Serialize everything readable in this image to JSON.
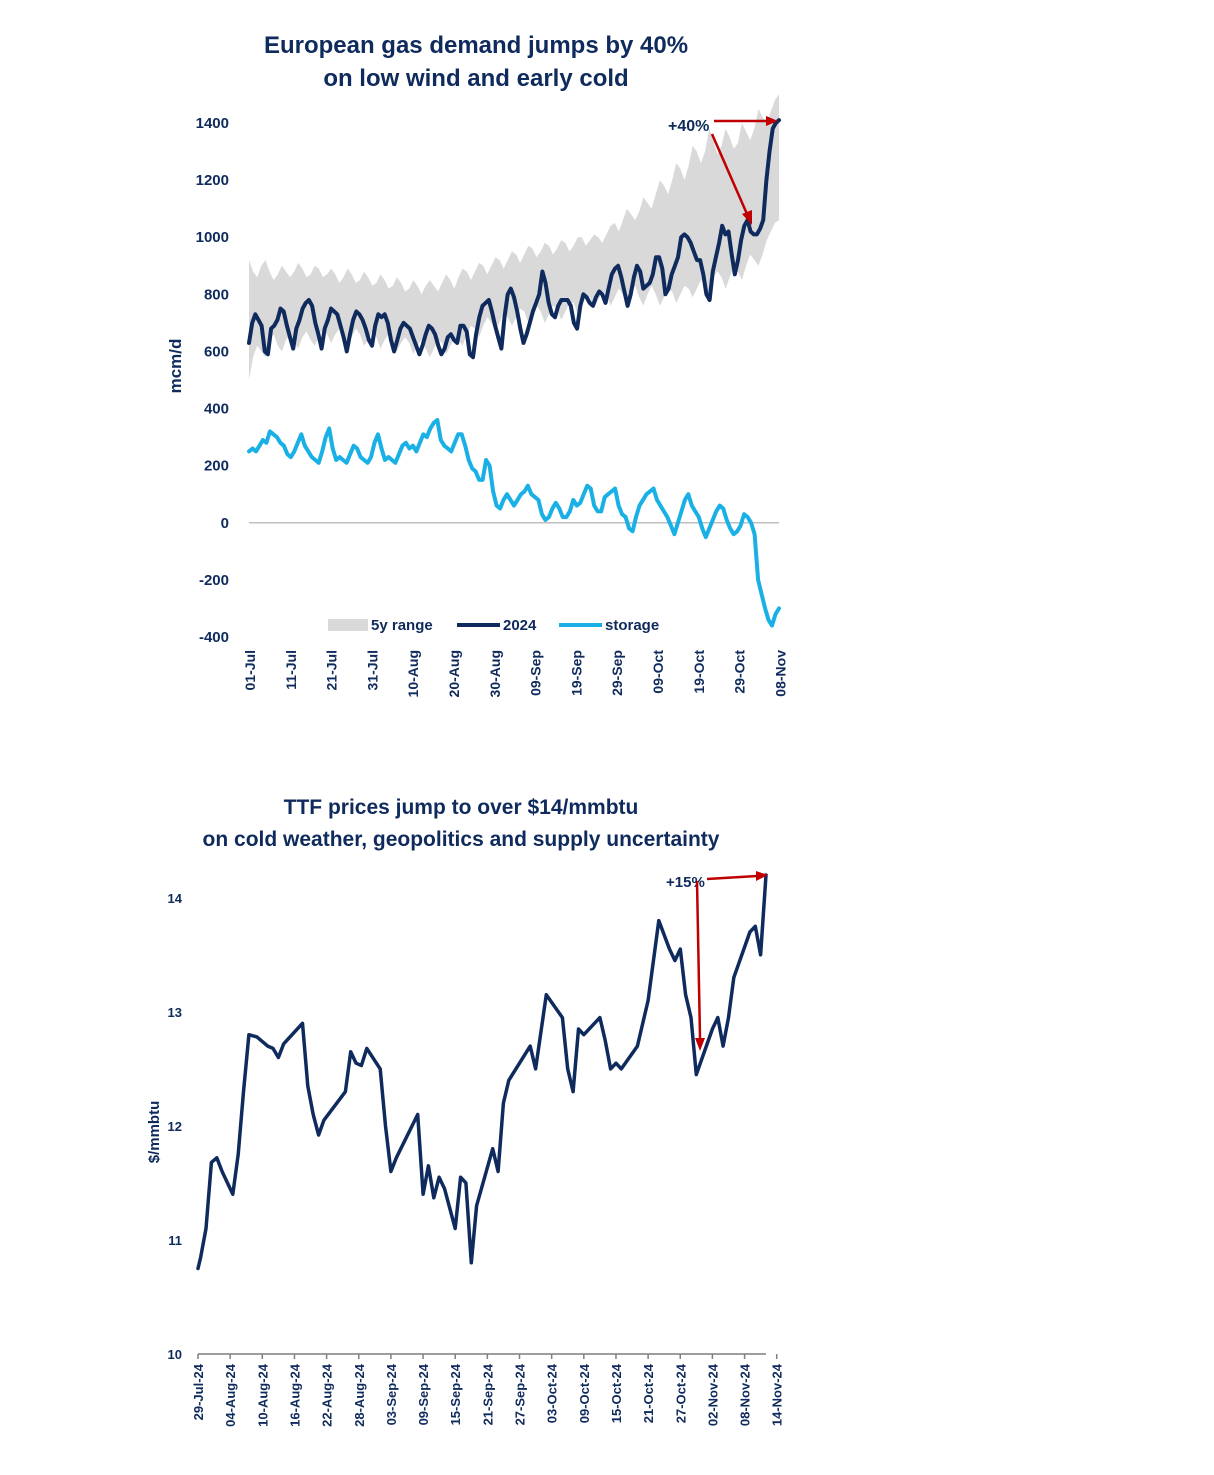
{
  "chart_data": [
    {
      "type": "line",
      "title": "European gas demand jumps by 40%",
      "subtitle": "on low wind and early cold",
      "ylabel": "mcm/d",
      "ylim": [
        -400,
        1400
      ],
      "yticks": [
        1400,
        1200,
        1000,
        800,
        600,
        400,
        200,
        0,
        -200,
        -400
      ],
      "x_start": "01-Jul",
      "x_end": "11-Nov",
      "x_tick_labels": [
        "01-Jul",
        "11-Jul",
        "21-Jul",
        "31-Jul",
        "10-Aug",
        "20-Aug",
        "30-Aug",
        "09-Sep",
        "19-Sep",
        "29-Sep",
        "09-Oct",
        "19-Oct",
        "29-Oct",
        "08-Nov"
      ],
      "legend": [
        "5y range",
        "2024",
        "storage"
      ],
      "legend_placement": "bottom",
      "colors": {
        "range": "#d9d9d9",
        "demand": "#0f2a5c",
        "storage": "#19b0e6",
        "arrow": "#c00000",
        "zero_line": "#bfbfbf"
      },
      "annotation": "+40%",
      "series": [
        {
          "name": "5y range",
          "lower": [
            500,
            580,
            620,
            600,
            580,
            640,
            660,
            620,
            600,
            640,
            660,
            630,
            610,
            650,
            670,
            640,
            620,
            650,
            680,
            660,
            630,
            660,
            680,
            660,
            630,
            650,
            680,
            660,
            620,
            640,
            670,
            650,
            610,
            640,
            660,
            640,
            600,
            630,
            650,
            630,
            590,
            620,
            640,
            610,
            580,
            610,
            640,
            630,
            590,
            620,
            650,
            640,
            620,
            660,
            690,
            680,
            650,
            690,
            720,
            700,
            670,
            700,
            740,
            720,
            690,
            720,
            750,
            740,
            700,
            730,
            760,
            740,
            700,
            730,
            760,
            750,
            710,
            740,
            770,
            770,
            730,
            760,
            790,
            790,
            750,
            780,
            810,
            800,
            760,
            790,
            820,
            800,
            770,
            800,
            830,
            790,
            760,
            800,
            830,
            800,
            760,
            790,
            820,
            810,
            770,
            800,
            830,
            820,
            790,
            820,
            850,
            840,
            800,
            860,
            880,
            860,
            820,
            860,
            900,
            880,
            850,
            900,
            940,
            920,
            900,
            940,
            990,
            1020,
            1050,
            1060
          ],
          "upper": [
            920,
            880,
            860,
            900,
            920,
            880,
            850,
            870,
            900,
            880,
            860,
            880,
            910,
            890,
            860,
            870,
            900,
            890,
            860,
            870,
            890,
            870,
            840,
            860,
            890,
            870,
            840,
            850,
            880,
            860,
            830,
            840,
            870,
            850,
            820,
            830,
            860,
            840,
            810,
            820,
            850,
            830,
            800,
            830,
            850,
            830,
            810,
            840,
            870,
            850,
            820,
            860,
            890,
            880,
            850,
            880,
            910,
            900,
            870,
            900,
            930,
            920,
            890,
            920,
            950,
            940,
            910,
            940,
            970,
            960,
            930,
            950,
            980,
            970,
            940,
            960,
            990,
            980,
            950,
            970,
            1000,
            1000,
            970,
            990,
            1010,
            1000,
            980,
            1010,
            1040,
            1050,
            1020,
            1060,
            1100,
            1080,
            1060,
            1090,
            1140,
            1120,
            1100,
            1150,
            1200,
            1180,
            1150,
            1200,
            1260,
            1240,
            1200,
            1250,
            1320,
            1300,
            1260,
            1300,
            1380,
            1340,
            1290,
            1320,
            1380,
            1350,
            1310,
            1330,
            1400,
            1370,
            1340,
            1380,
            1450,
            1420,
            1400,
            1440,
            1480,
            1500
          ]
        },
        {
          "name": "2024",
          "values": [
            630,
            700,
            730,
            710,
            690,
            600,
            590,
            680,
            690,
            710,
            750,
            740,
            690,
            650,
            610,
            680,
            710,
            750,
            770,
            780,
            760,
            700,
            660,
            610,
            680,
            710,
            750,
            740,
            730,
            690,
            650,
            600,
            660,
            710,
            740,
            730,
            710,
            680,
            640,
            620,
            690,
            730,
            720,
            730,
            700,
            640,
            600,
            640,
            680,
            700,
            690,
            680,
            650,
            620,
            590,
            620,
            660,
            690,
            680,
            660,
            620,
            590,
            610,
            650,
            660,
            640,
            630,
            690,
            690,
            670,
            590,
            580,
            660,
            720,
            760,
            770,
            780,
            740,
            690,
            650,
            610,
            720,
            800,
            820,
            790,
            740,
            680,
            630,
            660,
            700,
            740,
            770,
            800,
            880,
            840,
            770,
            730,
            720,
            760,
            780,
            780,
            780,
            760,
            700,
            680,
            760,
            800,
            790,
            770,
            760,
            790,
            810,
            800,
            770,
            820,
            870,
            890,
            900,
            860,
            810,
            760,
            800,
            860,
            900,
            880,
            820,
            830,
            840,
            870,
            930,
            930,
            890,
            800,
            820,
            870,
            900,
            930,
            1000,
            1010,
            1000,
            980,
            950,
            920,
            920,
            870,
            800,
            780,
            880,
            930,
            980,
            1040,
            1010,
            1020,
            940,
            870,
            920,
            990,
            1040,
            1060,
            1020,
            1010,
            1010,
            1030,
            1060,
            1200,
            1300,
            1380,
            1400,
            1410
          ]
        },
        {
          "name": "storage",
          "values": [
            250,
            260,
            250,
            270,
            290,
            280,
            320,
            310,
            300,
            280,
            270,
            240,
            230,
            250,
            280,
            310,
            270,
            250,
            230,
            220,
            210,
            250,
            300,
            330,
            260,
            220,
            230,
            220,
            210,
            240,
            270,
            260,
            230,
            220,
            210,
            230,
            280,
            310,
            260,
            220,
            230,
            220,
            210,
            240,
            270,
            280,
            260,
            270,
            250,
            280,
            310,
            300,
            330,
            350,
            360,
            290,
            270,
            260,
            250,
            280,
            310,
            310,
            270,
            220,
            190,
            180,
            150,
            150,
            220,
            200,
            110,
            60,
            50,
            80,
            100,
            80,
            60,
            80,
            100,
            110,
            130,
            100,
            90,
            80,
            30,
            10,
            20,
            50,
            70,
            50,
            20,
            20,
            40,
            80,
            60,
            70,
            100,
            130,
            120,
            60,
            40,
            40,
            90,
            100,
            110,
            120,
            60,
            30,
            20,
            -20,
            -30,
            20,
            60,
            80,
            100,
            110,
            120,
            80,
            60,
            40,
            20,
            -10,
            -40,
            0,
            40,
            80,
            100,
            60,
            40,
            20,
            -20,
            -50,
            -20,
            10,
            40,
            60,
            50,
            10,
            -20,
            -40,
            -30,
            -10,
            30,
            20,
            0,
            -40,
            -200,
            -250,
            -300,
            -340,
            -360,
            -320,
            -300
          ]
        }
      ]
    },
    {
      "type": "line",
      "title": "TTF prices jump to over $14/mmbtu",
      "subtitle": "on cold weather, geopolitics and supply uncertainty",
      "ylabel": "$/mmbtu",
      "ylim": [
        10,
        14.3
      ],
      "yticks": [
        14,
        13,
        12,
        11,
        10
      ],
      "x_start": "29-Jul-24",
      "x_end": "14-Nov-24",
      "x_tick_labels": [
        "29-Jul-24",
        "04-Aug-24",
        "10-Aug-24",
        "16-Aug-24",
        "22-Aug-24",
        "28-Aug-24",
        "03-Sep-24",
        "09-Sep-24",
        "15-Sep-24",
        "21-Sep-24",
        "27-Sep-24",
        "03-Oct-24",
        "09-Oct-24",
        "15-Oct-24",
        "21-Oct-24",
        "27-Oct-24",
        "02-Nov-24",
        "08-Nov-24",
        "14-Nov-24"
      ],
      "colors": {
        "line": "#0f2a5c",
        "arrow": "#c00000"
      },
      "annotation": "+15%",
      "series": [
        {
          "name": "",
          "points": [
            [
              0,
              10.75
            ],
            [
              0.5,
              10.85
            ],
            [
              1.5,
              11.1
            ],
            [
              2.5,
              11.68
            ],
            [
              3.5,
              11.72
            ],
            [
              4.5,
              11.6
            ],
            [
              6.5,
              11.4
            ],
            [
              7.5,
              11.75
            ],
            [
              8.5,
              12.3
            ],
            [
              9.5,
              12.8
            ],
            [
              11,
              12.78
            ],
            [
              13,
              12.7
            ],
            [
              14,
              12.68
            ],
            [
              15,
              12.6
            ],
            [
              16,
              12.72
            ],
            [
              19.5,
              12.9
            ],
            [
              20.5,
              12.35
            ],
            [
              21.5,
              12.1
            ],
            [
              22.5,
              11.92
            ],
            [
              23.5,
              12.05
            ],
            [
              27.5,
              12.3
            ],
            [
              28.5,
              12.65
            ],
            [
              29.5,
              12.55
            ],
            [
              30.5,
              12.53
            ],
            [
              31.5,
              12.68
            ],
            [
              34,
              12.5
            ],
            [
              35,
              12.0
            ],
            [
              36,
              11.6
            ],
            [
              37,
              11.72
            ],
            [
              41,
              12.1
            ],
            [
              42,
              11.4
            ],
            [
              43,
              11.65
            ],
            [
              44,
              11.37
            ],
            [
              45,
              11.55
            ],
            [
              46,
              11.45
            ],
            [
              48,
              11.1
            ],
            [
              49,
              11.55
            ],
            [
              50,
              11.5
            ],
            [
              51,
              10.8
            ],
            [
              52,
              11.3
            ],
            [
              55,
              11.8
            ],
            [
              56,
              11.6
            ],
            [
              57,
              12.2
            ],
            [
              58,
              12.4
            ],
            [
              62,
              12.7
            ],
            [
              63,
              12.5
            ],
            [
              65,
              13.15
            ],
            [
              68,
              12.95
            ],
            [
              69,
              12.5
            ],
            [
              70,
              12.3
            ],
            [
              71,
              12.85
            ],
            [
              72,
              12.8
            ],
            [
              75,
              12.95
            ],
            [
              76,
              12.75
            ],
            [
              77,
              12.5
            ],
            [
              78,
              12.55
            ],
            [
              79,
              12.5
            ],
            [
              82,
              12.7
            ],
            [
              84,
              13.1
            ],
            [
              86,
              13.8
            ],
            [
              88,
              13.55
            ],
            [
              89,
              13.45
            ],
            [
              90,
              13.55
            ],
            [
              91,
              13.15
            ],
            [
              92,
              12.95
            ],
            [
              93,
              12.45
            ],
            [
              96,
              12.85
            ],
            [
              97,
              12.95
            ],
            [
              98,
              12.7
            ],
            [
              99,
              12.95
            ],
            [
              100,
              13.3
            ],
            [
              103,
              13.7
            ],
            [
              104,
              13.75
            ],
            [
              105,
              13.5
            ],
            [
              106,
              14.2
            ]
          ]
        }
      ]
    }
  ]
}
